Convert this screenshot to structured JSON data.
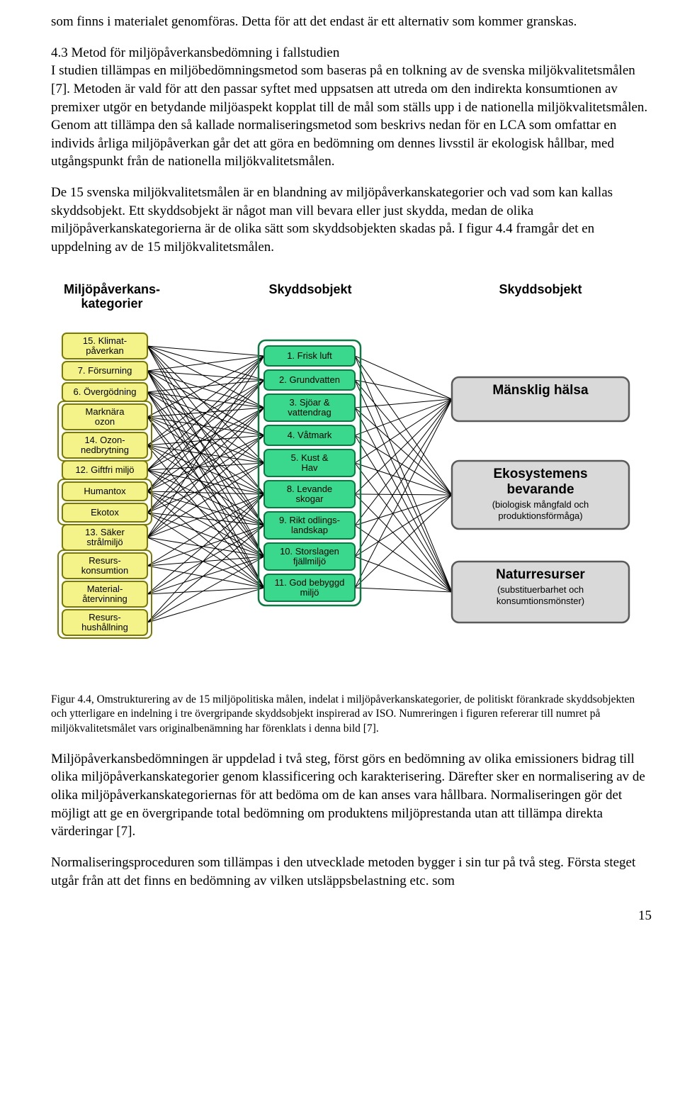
{
  "paragraphs": {
    "p0": "som finns i materialet genomföras. Detta för att det endast är ett alternativ som kommer granskas.",
    "p1": "4.3 Metod för miljöpåverkansbedömning i fallstudien",
    "p2": "I studien tillämpas en miljöbedömningsmetod som baseras på en tolkning av de svenska miljökvalitetsmålen [7]. Metoden är vald för att den passar syftet med uppsatsen att utreda om den indirekta konsumtionen av premixer utgör en betydande miljöaspekt kopplat till de mål som ställs upp i de nationella miljökvalitetsmålen. Genom att tillämpa den så kallade normaliseringsmetod som beskrivs nedan för en LCA som omfattar en individs årliga miljöpåverkan går det att göra en bedömning om dennes livsstil är ekologisk hållbar, med utgångspunkt från de nationella miljökvalitetsmålen.",
    "p3": "De 15 svenska miljökvalitetsmålen är en blandning av miljöpåverkanskategorier och vad som kan kallas skyddsobjekt. Ett skyddsobjekt är något man vill bevara eller just skydda, medan de olika miljöpåverkanskategorierna är de olika sätt som skyddsobjekten skadas på. I figur 4.4 framgår det en uppdelning av de 15 miljökvalitetsmålen.",
    "caption": "Figur 4.4, Omstrukturering av de 15 miljöpolitiska målen, indelat i miljöpåverkanskategorier, de politiskt förankrade skyddsobjekten och ytterligare en indelning i tre övergripande skyddsobjekt inspirerad av ISO. Numreringen i figuren refererar till numret på miljökvalitetsmålet vars originalbenämning har förenklats i denna bild [7].",
    "p4": "Miljöpåverkansbedömningen är uppdelad i två steg, först görs en bedömning av olika emissioners bidrag till olika miljöpåverkanskategorier genom klassificering och karakterisering. Därefter sker en normalisering av de olika miljöpåverkanskategoriernas för att bedöma om de kan anses vara hållbara. Normaliseringen gör det möjligt att ge en övergripande total bedömning om produktens miljöprestanda utan att tillämpa direkta värderingar [7].",
    "p5": "Normaliseringsproceduren som tillämpas i den utvecklade metoden bygger i sin tur på två steg. Första steget utgår från att det finns en bedömning av vilken utsläppsbelastning etc. som"
  },
  "pagenum": "15",
  "diagram": {
    "headers": {
      "c1a": "Miljöpåverkans-",
      "c1b": "kategorier",
      "c2": "Skyddsobjekt",
      "c3": "Skyddsobjekt"
    },
    "left": {
      "fill": "#f3f38a",
      "stroke": "#7a7a00",
      "items": [
        {
          "l1": "15. Klimat-",
          "l2": "påverkan"
        },
        {
          "l1": "7. Försurning"
        },
        {
          "l1": "6. Övergödning"
        },
        {
          "l1": "Marknära",
          "l2": "ozon"
        },
        {
          "l1": "14. Ozon-",
          "l2": "nedbrytning"
        },
        {
          "l1": "12. Giftfri miljö"
        },
        {
          "l1": "Humantox"
        },
        {
          "l1": "Ekotox"
        },
        {
          "l1": "13. Säker",
          "l2": "strålmiljö"
        },
        {
          "l1": "Resurs-",
          "l2": "konsumtion"
        },
        {
          "l1": "Material-",
          "l2": "återvinning"
        },
        {
          "l1": "Resurs-",
          "l2": "hushållning"
        }
      ]
    },
    "mid": {
      "fill": "#39d88d",
      "stroke": "#0a7a42",
      "items": [
        {
          "l1": "1. Frisk luft"
        },
        {
          "l1": "2. Grundvatten"
        },
        {
          "l1": "3. Sjöar &",
          "l2": "vattendrag"
        },
        {
          "l1": "4. Våtmark"
        },
        {
          "l1": "5. Kust &",
          "l2": "Hav"
        },
        {
          "l1": "8. Levande",
          "l2": "skogar"
        },
        {
          "l1": "9. Rikt odlings-",
          "l2": "landskap"
        },
        {
          "l1": "10. Storslagen",
          "l2": "fjällmiljö"
        },
        {
          "l1": "11. God bebyggd",
          "l2": "miljö"
        }
      ]
    },
    "right": {
      "fill": "#d9d9d9",
      "stroke": "#5a5a5a",
      "items": [
        {
          "title": "Mänsklig hälsa"
        },
        {
          "title": "Ekosystemens",
          "title2": "bevarande",
          "sub1": "(biologisk mångfald och",
          "sub2": "produktionsförmåga)"
        },
        {
          "title": "Naturresurser",
          "sub1": "(substituerbarhet och",
          "sub2": "konsumtionsmönster)"
        }
      ]
    }
  }
}
